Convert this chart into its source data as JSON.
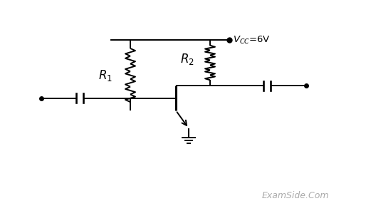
{
  "bg_color": "#ffffff",
  "line_color": "#000000",
  "watermark_color": "#aaaaaa",
  "examside": "ExamSide.Com",
  "figsize": [
    5.14,
    3.03
  ],
  "dpi": 100
}
